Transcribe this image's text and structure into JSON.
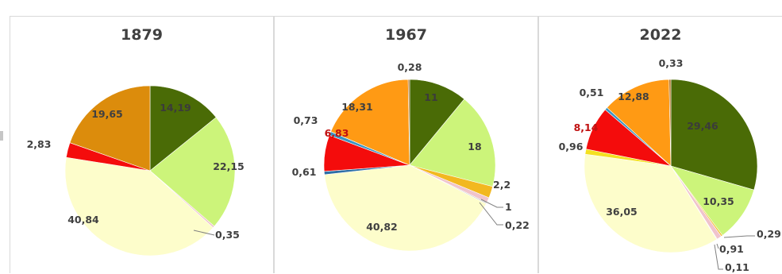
{
  "chart_data": [
    {
      "type": "pie",
      "title": "1879",
      "values": [
        14.19,
        22.15,
        0.35,
        40.84,
        2.83,
        19.65
      ],
      "value_labels": [
        "14,19",
        "22,15",
        "0,35",
        "40,84",
        "2,83",
        "19,65"
      ],
      "colors": [
        "#4a6b06",
        "#ccf47a",
        "#f0c4cc",
        "#fdfdcb",
        "#f40c0c",
        "#dc8c0c"
      ]
    },
    {
      "type": "pie",
      "title": "1967",
      "values": [
        11,
        18,
        2.2,
        1,
        0.22,
        40.82,
        0.61,
        6.83,
        0.73,
        18.31,
        0.28
      ],
      "value_labels": [
        "11",
        "18",
        "2,2",
        "1",
        "0,22",
        "40,82",
        "0,61",
        "6,83",
        "0,73",
        "18,31",
        "0,28"
      ],
      "colors": [
        "#4a6b06",
        "#ccf47a",
        "#f2b820",
        "#f0c4cc",
        "#c8c8c8",
        "#fdfdcb",
        "#2f6fa6",
        "#f40c0c",
        "#3a94c2",
        "#ff9a14",
        "#b06e20"
      ]
    },
    {
      "type": "pie",
      "title": "2022",
      "values": [
        29.46,
        10.35,
        0.29,
        0.91,
        0.11,
        36.05,
        0.96,
        8.14,
        0.51,
        12.88,
        0.33
      ],
      "value_labels": [
        "29,46",
        "10,35",
        "0,29",
        "0,91",
        "0,11",
        "36,05",
        "0,96",
        "8,14",
        "0,51",
        "12,88",
        "0,33"
      ],
      "colors": [
        "#4a6b06",
        "#ccf47a",
        "#f2b820",
        "#f0c4cc",
        "#c8c8c8",
        "#fdfdcb",
        "#f4e020",
        "#f40c0c",
        "#3a94c2",
        "#ff9a14",
        "#b06e20"
      ]
    }
  ]
}
